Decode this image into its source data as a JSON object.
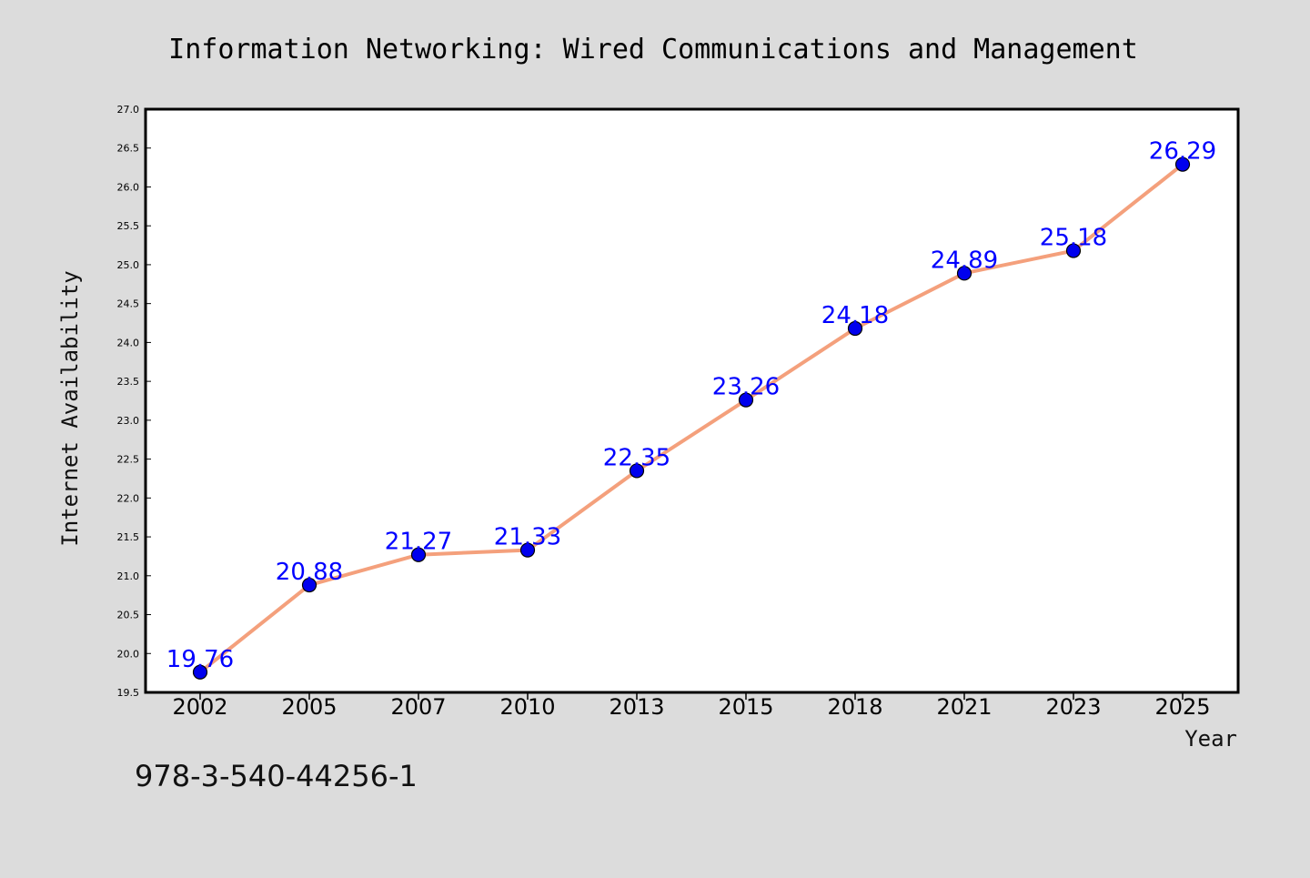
{
  "chart_data": {
    "type": "line",
    "title": "Information Networking: Wired Communications and Management",
    "xlabel": "Year",
    "ylabel": "Internet Availability",
    "categories": [
      "2002",
      "2005",
      "2007",
      "2010",
      "2013",
      "2015",
      "2018",
      "2021",
      "2023",
      "2025"
    ],
    "series": [
      {
        "values": [
          19.76,
          20.88,
          21.27,
          21.33,
          22.35,
          23.26,
          24.18,
          24.89,
          25.18,
          26.29
        ]
      }
    ],
    "data_labels": [
      "19.76",
      "20.88",
      "21.27",
      "21.33",
      "22.35",
      "23.26",
      "24.18",
      "24.89",
      "25.18",
      "26.29"
    ],
    "ylim": [
      19.5,
      27.0
    ],
    "yticks": [
      "19.5",
      "20.0",
      "20.5",
      "21.0",
      "21.5",
      "22.0",
      "22.5",
      "23.0",
      "23.5",
      "24.0",
      "24.5",
      "25.0",
      "25.5",
      "26.0",
      "26.5",
      "27.0"
    ],
    "grid": false,
    "colors": {
      "line": "#f4a07c",
      "marker": "#0000ee",
      "label": "#0000ff",
      "background": "#dcdcdc",
      "plot_background": "#ffffff"
    }
  },
  "footer_text": "978-3-540-44256-1"
}
